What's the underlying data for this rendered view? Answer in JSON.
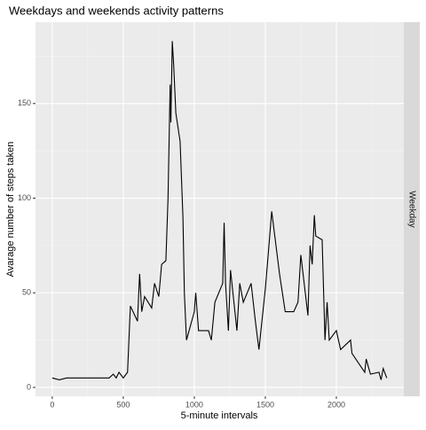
{
  "chart_data": {
    "type": "line",
    "title": "Weekdays and weekends activity patterns",
    "xlabel": "5-minute intervals",
    "ylabel": "Avarage number of steps taken",
    "facet": "Weekday",
    "x": [
      0,
      50,
      100,
      150,
      200,
      250,
      300,
      350,
      400,
      430,
      450,
      470,
      500,
      530,
      550,
      600,
      615,
      630,
      650,
      700,
      720,
      750,
      770,
      800,
      815,
      830,
      835,
      845,
      855,
      870,
      900,
      920,
      930,
      945,
      1000,
      1010,
      1030,
      1100,
      1120,
      1145,
      1200,
      1210,
      1220,
      1240,
      1255,
      1300,
      1320,
      1345,
      1400,
      1430,
      1455,
      1500,
      1520,
      1545,
      1600,
      1620,
      1640,
      1700,
      1730,
      1750,
      1800,
      1815,
      1830,
      1845,
      1855,
      1900,
      1920,
      1935,
      1950,
      2000,
      2030,
      2100,
      2110,
      2200,
      2210,
      2240,
      2300,
      2315,
      2330,
      2355
    ],
    "series": [
      {
        "name": "Weekday",
        "color": "#000000",
        "values": [
          5,
          4,
          5,
          5,
          5,
          5,
          5,
          5,
          5,
          7,
          5,
          8,
          5,
          8,
          43,
          35,
          60,
          40,
          48,
          42,
          55,
          48,
          65,
          67,
          100,
          160,
          140,
          183,
          170,
          145,
          130,
          90,
          50,
          25,
          40,
          50,
          30,
          30,
          25,
          45,
          55,
          87,
          55,
          30,
          62,
          30,
          55,
          45,
          55,
          35,
          20,
          52,
          70,
          93,
          60,
          50,
          40,
          40,
          45,
          70,
          38,
          75,
          65,
          91,
          80,
          78,
          25,
          45,
          25,
          30,
          20,
          25,
          18,
          8,
          15,
          7,
          8,
          4,
          10,
          5
        ]
      }
    ],
    "xlim": [
      -118,
      2475
    ],
    "ylim": [
      -4.7,
      193
    ],
    "xticks": [
      0,
      500,
      1000,
      1500,
      2000
    ],
    "yticks": [
      0,
      50,
      100,
      150
    ],
    "xminor": [
      250,
      750,
      1250,
      1750,
      2250
    ],
    "yminor": [
      25,
      75,
      125,
      175
    ],
    "grid": true
  }
}
